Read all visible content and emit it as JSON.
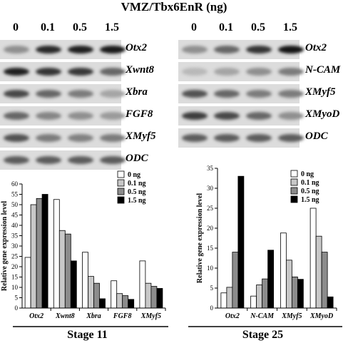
{
  "title": "VMZ/Tbx6EnR (ng)",
  "gels": [
    {
      "lanes": [
        "0",
        "0.1",
        "0.5",
        "1.5"
      ],
      "rows": [
        {
          "gene": "Otx2",
          "intensity": [
            0.35,
            0.85,
            0.9,
            0.92
          ]
        },
        {
          "gene": "Xwnt8",
          "intensity": [
            0.9,
            0.8,
            0.78,
            0.55
          ]
        },
        {
          "gene": "Xbra",
          "intensity": [
            0.7,
            0.55,
            0.45,
            0.25
          ]
        },
        {
          "gene": "FGF8",
          "intensity": [
            0.55,
            0.4,
            0.35,
            0.3
          ]
        },
        {
          "gene": "XMyf5",
          "intensity": [
            0.65,
            0.45,
            0.42,
            0.45
          ]
        },
        {
          "gene": "ODC",
          "intensity": [
            0.6,
            0.6,
            0.6,
            0.6
          ]
        }
      ]
    },
    {
      "lanes": [
        "0",
        "0.1",
        "0.5",
        "1.5"
      ],
      "rows": [
        {
          "gene": "Otx2",
          "intensity": [
            0.35,
            0.55,
            0.8,
            0.95
          ]
        },
        {
          "gene": "N-CAM",
          "intensity": [
            0.15,
            0.25,
            0.35,
            0.45
          ]
        },
        {
          "gene": "XMyf5",
          "intensity": [
            0.65,
            0.55,
            0.45,
            0.45
          ]
        },
        {
          "gene": "XMyoD",
          "intensity": [
            0.75,
            0.7,
            0.55,
            0.35
          ]
        },
        {
          "gene": "ODC",
          "intensity": [
            0.6,
            0.6,
            0.6,
            0.6
          ]
        }
      ]
    }
  ],
  "chart_data": [
    {
      "type": "bar",
      "title": "Stage 11",
      "ylabel": "Relative gene expression level",
      "categories": [
        "Otx2",
        "Xwnt8",
        "Xbra",
        "FGF8",
        "XMyf5"
      ],
      "ylim": [
        0,
        60
      ],
      "yticks": [
        0,
        5,
        10,
        15,
        20,
        25,
        30,
        35,
        40,
        45,
        50,
        55,
        60
      ],
      "legend_position": "top-right",
      "series": [
        {
          "name": "0 ng",
          "color": "#ffffff",
          "values": [
            24.5,
            52.5,
            27,
            13.2,
            22.8
          ]
        },
        {
          "name": "0.1 ng",
          "color": "#c8c8c8",
          "values": [
            50,
            37.5,
            15.3,
            7,
            12
          ]
        },
        {
          "name": "0.5 ng",
          "color": "#8c8c8c",
          "values": [
            53,
            35.8,
            12,
            6,
            10.5
          ]
        },
        {
          "name": "1.5 ng",
          "color": "#000000",
          "values": [
            55,
            22.8,
            4.5,
            4.2,
            9.5
          ]
        }
      ]
    },
    {
      "type": "bar",
      "title": "Stage 25",
      "ylabel": "Relative gene expression level",
      "categories": [
        "Otx2",
        "N-CAM",
        "XMyf5",
        "XMyoD"
      ],
      "ylim": [
        0,
        35
      ],
      "yticks": [
        0,
        5,
        10,
        15,
        20,
        25,
        30,
        35
      ],
      "legend_position": "top-right",
      "series": [
        {
          "name": "0 ng",
          "color": "#ffffff",
          "values": [
            3.8,
            3,
            18.8,
            25
          ]
        },
        {
          "name": "0.1 ng",
          "color": "#c8c8c8",
          "values": [
            5.2,
            5.8,
            12,
            18
          ]
        },
        {
          "name": "0.5 ng",
          "color": "#8c8c8c",
          "values": [
            14,
            7.3,
            7.8,
            14
          ]
        },
        {
          "name": "1.5 ng",
          "color": "#000000",
          "values": [
            33,
            14.5,
            7.2,
            2.8
          ]
        }
      ]
    }
  ]
}
